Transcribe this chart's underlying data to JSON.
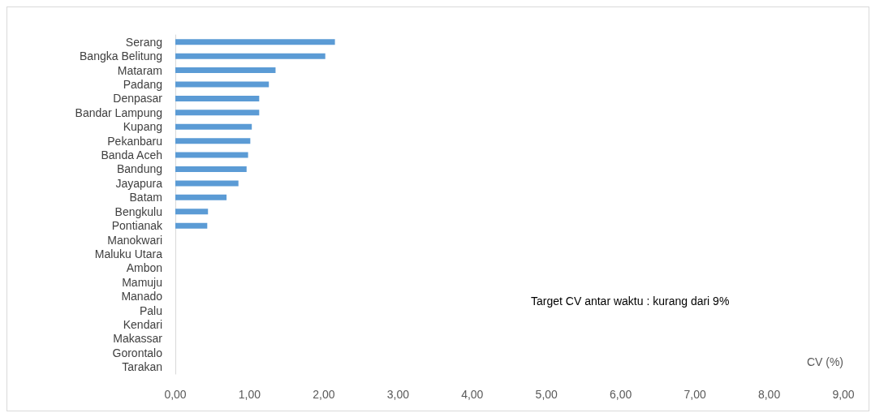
{
  "chart_data": {
    "type": "bar",
    "orientation": "horizontal",
    "xlabel": "CV (%)",
    "annotations": [
      "Target CV antar waktu : kurang dari 9%"
    ],
    "categories": [
      "Serang",
      "Bangka Belitung",
      "Mataram",
      "Padang",
      "Denpasar",
      "Bandar Lampung",
      "Kupang",
      "Pekanbaru",
      "Banda Aceh",
      "Bandung",
      "Jayapura",
      "Batam",
      "Bengkulu",
      "Pontianak",
      "Manokwari",
      "Maluku Utara",
      "Ambon",
      "Mamuju",
      "Manado",
      "Palu",
      "Kendari",
      "Makassar",
      "Gorontalo",
      "Tarakan"
    ],
    "values": [
      2.15,
      2.02,
      1.35,
      1.26,
      1.13,
      1.13,
      1.03,
      1.01,
      0.98,
      0.96,
      0.85,
      0.69,
      0.44,
      0.43,
      null,
      null,
      null,
      null,
      null,
      null,
      null,
      null,
      null,
      null
    ],
    "color": "#5b9bd5",
    "xlim": [
      0,
      9
    ],
    "xticks": [
      {
        "value": 0,
        "label": "0,00"
      },
      {
        "value": 1,
        "label": "1,00"
      },
      {
        "value": 2,
        "label": "2,00"
      },
      {
        "value": 3,
        "label": "3,00"
      },
      {
        "value": 4,
        "label": "4,00"
      },
      {
        "value": 5,
        "label": "5,00"
      },
      {
        "value": 6,
        "label": "6,00"
      },
      {
        "value": 7,
        "label": "7,00"
      },
      {
        "value": 8,
        "label": "8,00"
      },
      {
        "value": 9,
        "label": "9,00"
      }
    ],
    "grid": false
  }
}
